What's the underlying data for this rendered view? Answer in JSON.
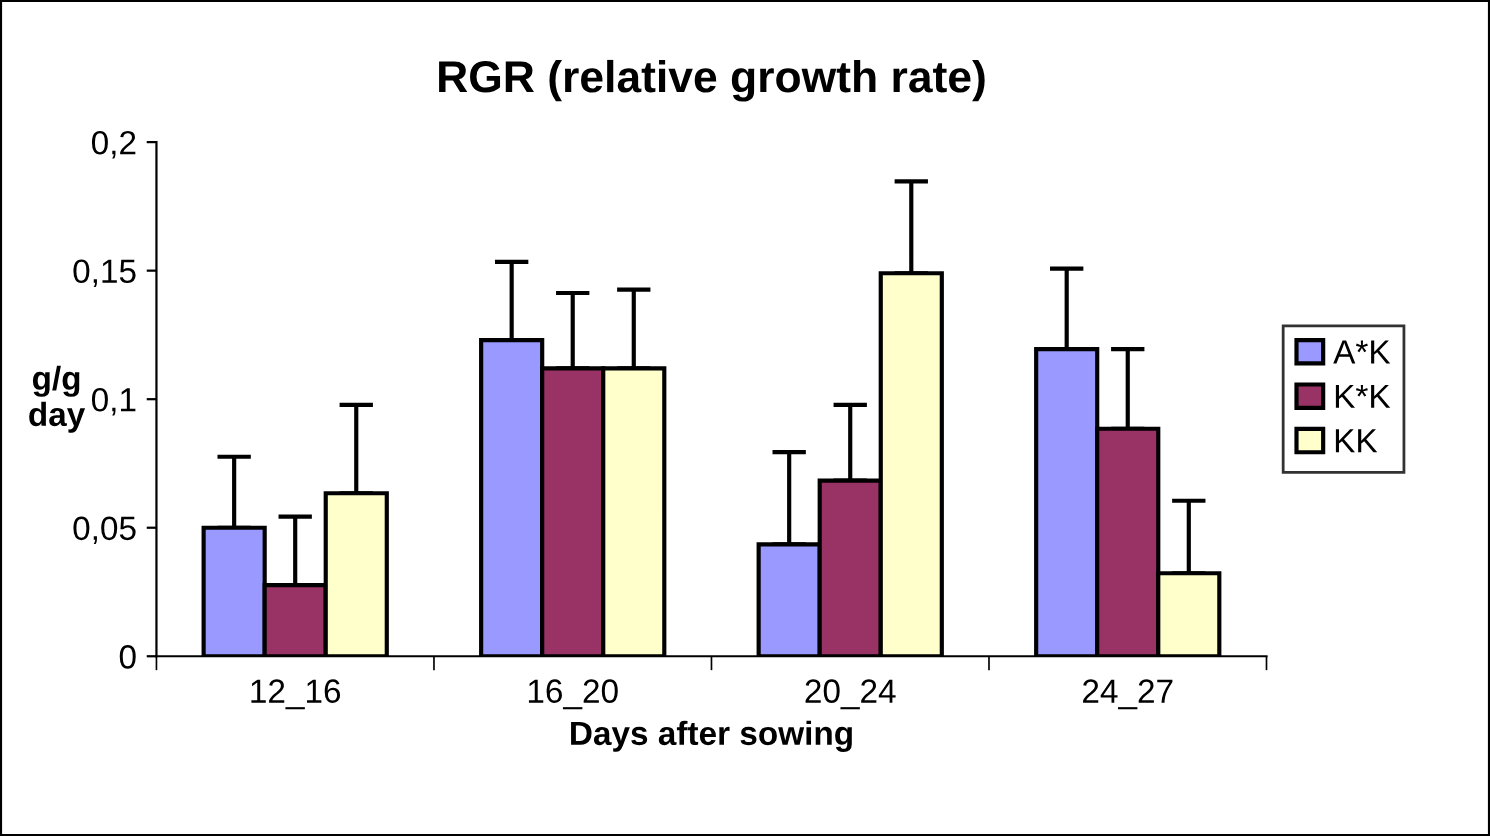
{
  "chart_data": {
    "type": "bar",
    "title": "RGR (relative growth rate)",
    "xlabel": "Days after sowing",
    "ylabel": "g/g\nday",
    "categories": [
      "12_16",
      "16_20",
      "20_24",
      "24_27"
    ],
    "series": [
      {
        "name": "A*K",
        "color": "#9999ff",
        "values": [
          0.05,
          0.123,
          0.0435,
          0.1195
        ],
        "errors": [
          [
            0.05,
            0.0776
          ],
          [
            0.123,
            0.1534
          ],
          [
            0.0435,
            0.0794
          ],
          [
            0.1195,
            0.1508
          ]
        ]
      },
      {
        "name": "K*K",
        "color": "#993366",
        "values": [
          0.0277,
          0.112,
          0.0683,
          0.0885
        ],
        "errors": [
          [
            0.0277,
            0.0543
          ],
          [
            0.112,
            0.1413
          ],
          [
            0.0683,
            0.0978
          ],
          [
            0.0885,
            0.1195
          ]
        ]
      },
      {
        "name": "KK",
        "color": "#ffffcc",
        "values": [
          0.0634,
          0.112,
          0.149,
          0.0323
        ],
        "errors": [
          [
            0.0634,
            0.0978
          ],
          [
            0.112,
            0.1426
          ],
          [
            0.149,
            0.1847
          ],
          [
            0.0323,
            0.0605
          ]
        ]
      }
    ],
    "ylim": [
      0,
      0.2
    ],
    "yticks": [
      {
        "value": 0,
        "label": "0"
      },
      {
        "value": 0.05,
        "label": "0,05"
      },
      {
        "value": 0.1,
        "label": "0,1"
      },
      {
        "value": 0.15,
        "label": "0,15"
      },
      {
        "value": 0.2,
        "label": "0,2"
      }
    ],
    "grid": false,
    "legend": "right"
  }
}
